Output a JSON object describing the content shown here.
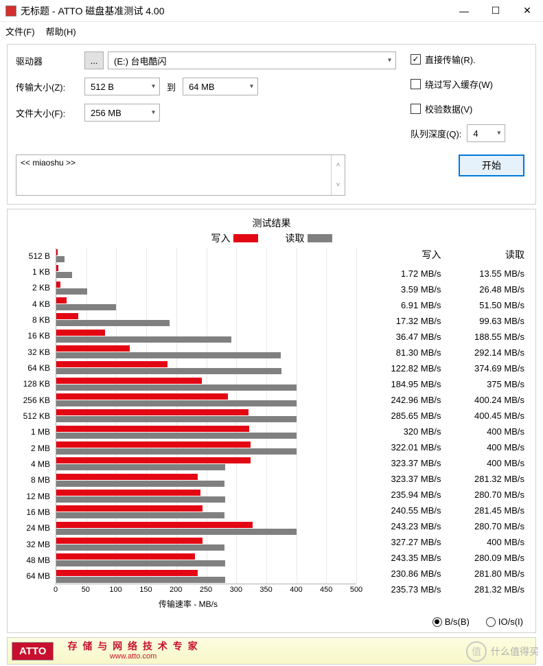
{
  "window": {
    "title": "无标题 - ATTO 磁盘基准测试 4.00"
  },
  "menu": {
    "file": "文件(F)",
    "help": "帮助(H)"
  },
  "form": {
    "drive_label": "驱动器",
    "drive_value": "(E:) 台电酷闪",
    "transfer_label": "传输大小(Z):",
    "transfer_from": "512 B",
    "transfer_to_label": "到",
    "transfer_to": "64 MB",
    "filesize_label": "文件大小(F):",
    "filesize_value": "256 MB",
    "browse_btn": "..."
  },
  "checks": {
    "direct": "直接传输(R).",
    "direct_checked": true,
    "bypass": "绕过写入缓存(W)",
    "bypass_checked": false,
    "verify": "校验数据(V)",
    "verify_checked": false,
    "queue_label": "队列深度(Q):",
    "queue_value": "4"
  },
  "desc": {
    "text": "<< miaoshu >>"
  },
  "start_label": "开始",
  "results": {
    "title": "测试结果",
    "write_label": "写入",
    "read_label": "读取",
    "xaxis_label": "传输速率 - MB/s",
    "axis": {
      "xmax": 500,
      "xtick_step": 50,
      "xticks": [
        "0",
        "50",
        "100",
        "150",
        "200",
        "250",
        "300",
        "350",
        "400",
        "450",
        "500"
      ]
    },
    "colors": {
      "write": "#e30613",
      "read": "#808080"
    },
    "rows": [
      {
        "label": "512 B",
        "write": 1.72,
        "read": 13.55,
        "write_s": "1.72 MB/s",
        "read_s": "13.55 MB/s"
      },
      {
        "label": "1 KB",
        "write": 3.59,
        "read": 26.48,
        "write_s": "3.59 MB/s",
        "read_s": "26.48 MB/s"
      },
      {
        "label": "2 KB",
        "write": 6.91,
        "read": 51.5,
        "write_s": "6.91 MB/s",
        "read_s": "51.50 MB/s"
      },
      {
        "label": "4 KB",
        "write": 17.32,
        "read": 99.63,
        "write_s": "17.32 MB/s",
        "read_s": "99.63 MB/s"
      },
      {
        "label": "8 KB",
        "write": 36.47,
        "read": 188.55,
        "write_s": "36.47 MB/s",
        "read_s": "188.55 MB/s"
      },
      {
        "label": "16 KB",
        "write": 81.3,
        "read": 292.14,
        "write_s": "81.30 MB/s",
        "read_s": "292.14 MB/s"
      },
      {
        "label": "32 KB",
        "write": 122.82,
        "read": 374.69,
        "write_s": "122.82 MB/s",
        "read_s": "374.69 MB/s"
      },
      {
        "label": "64 KB",
        "write": 184.95,
        "read": 375,
        "write_s": "184.95 MB/s",
        "read_s": "375 MB/s"
      },
      {
        "label": "128 KB",
        "write": 242.96,
        "read": 400.24,
        "write_s": "242.96 MB/s",
        "read_s": "400.24 MB/s"
      },
      {
        "label": "256 KB",
        "write": 285.65,
        "read": 400.45,
        "write_s": "285.65 MB/s",
        "read_s": "400.45 MB/s"
      },
      {
        "label": "512 KB",
        "write": 320,
        "read": 400,
        "write_s": "320 MB/s",
        "read_s": "400 MB/s"
      },
      {
        "label": "1 MB",
        "write": 322.01,
        "read": 400,
        "write_s": "322.01 MB/s",
        "read_s": "400 MB/s"
      },
      {
        "label": "2 MB",
        "write": 323.37,
        "read": 400,
        "write_s": "323.37 MB/s",
        "read_s": "400 MB/s"
      },
      {
        "label": "4 MB",
        "write": 323.37,
        "read": 281.32,
        "write_s": "323.37 MB/s",
        "read_s": "281.32 MB/s"
      },
      {
        "label": "8 MB",
        "write": 235.94,
        "read": 280.7,
        "write_s": "235.94 MB/s",
        "read_s": "280.70 MB/s"
      },
      {
        "label": "12 MB",
        "write": 240.55,
        "read": 281.45,
        "write_s": "240.55 MB/s",
        "read_s": "281.45 MB/s"
      },
      {
        "label": "16 MB",
        "write": 243.23,
        "read": 280.7,
        "write_s": "243.23 MB/s",
        "read_s": "280.70 MB/s"
      },
      {
        "label": "24 MB",
        "write": 327.27,
        "read": 400,
        "write_s": "327.27 MB/s",
        "read_s": "400 MB/s"
      },
      {
        "label": "32 MB",
        "write": 243.35,
        "read": 280.09,
        "write_s": "243.35 MB/s",
        "read_s": "280.09 MB/s"
      },
      {
        "label": "48 MB",
        "write": 230.86,
        "read": 281.8,
        "write_s": "230.86 MB/s",
        "read_s": "281.80 MB/s"
      },
      {
        "label": "64 MB",
        "write": 235.73,
        "read": 281.32,
        "write_s": "235.73 MB/s",
        "read_s": "281.32 MB/s"
      }
    ]
  },
  "radio": {
    "bs": "B/s(B)",
    "ios": "IO/s(I)"
  },
  "banner": {
    "logo": "ATTO",
    "line1": "存 储 与 网 络 技 术 专 家",
    "line2": "www.atto.com"
  },
  "watermark": {
    "char": "值",
    "text": "什么值得买"
  }
}
